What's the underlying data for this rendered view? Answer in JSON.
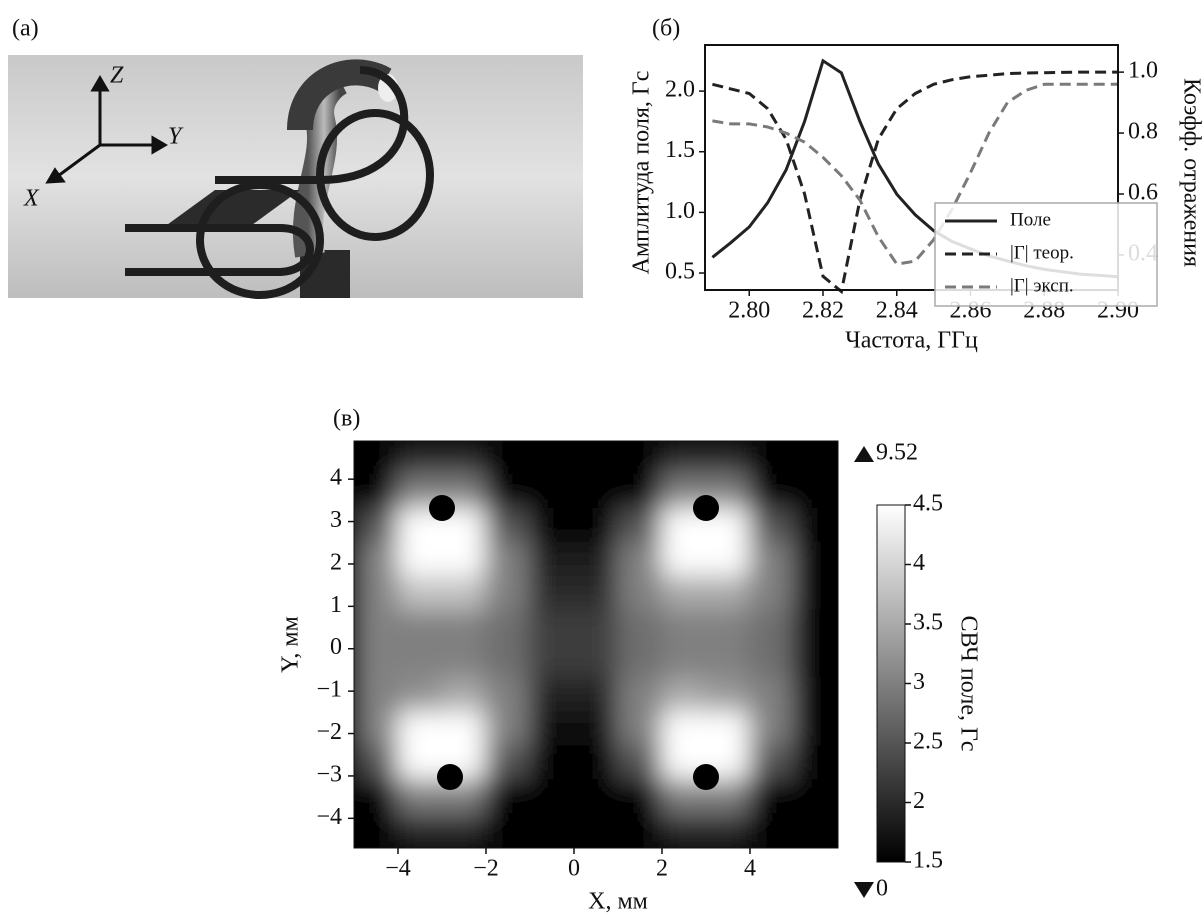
{
  "panel_labels": [
    "(а)",
    "(б)",
    "(в)"
  ],
  "illustration": {
    "axis_labels": [
      "Z",
      "Y",
      "X"
    ]
  },
  "chart_data": [
    {
      "type": "line",
      "xlabel": "Частота, ГГц",
      "ylabel": "Амплитуда поля, Гс",
      "y2label": "Коэфф. отражения",
      "x": [
        2.79,
        2.795,
        2.8,
        2.805,
        2.81,
        2.815,
        2.82,
        2.825,
        2.83,
        2.835,
        2.84,
        2.845,
        2.85,
        2.855,
        2.86,
        2.865,
        2.87,
        2.875,
        2.88,
        2.885,
        2.89,
        2.895,
        2.9
      ],
      "series": [
        {
          "name": "Поле",
          "color": "#222222",
          "style": "solid",
          "values": [
            0.63,
            0.75,
            0.88,
            1.08,
            1.35,
            1.75,
            2.25,
            2.15,
            1.75,
            1.4,
            1.15,
            0.98,
            0.85,
            0.76,
            0.7,
            0.64,
            0.6,
            0.56,
            0.53,
            0.51,
            0.49,
            0.48,
            0.47
          ]
        },
        {
          "name": "|Г| теор.",
          "color": "#222222",
          "style": "dashed",
          "axis": "y2",
          "values": [
            0.96,
            0.945,
            0.93,
            0.88,
            0.78,
            0.6,
            0.33,
            0.28,
            0.58,
            0.78,
            0.88,
            0.93,
            0.96,
            0.975,
            0.985,
            0.99,
            0.995,
            0.997,
            0.998,
            0.999,
            1.0,
            1.0,
            1.0
          ]
        },
        {
          "name": "|Г| эксп.",
          "color": "#7a7a7a",
          "style": "dashed",
          "axis": "y2",
          "values": [
            0.84,
            0.83,
            0.83,
            0.82,
            0.8,
            0.77,
            0.72,
            0.66,
            0.58,
            0.46,
            0.37,
            0.38,
            0.45,
            0.55,
            0.67,
            0.8,
            0.9,
            0.94,
            0.96,
            0.96,
            0.96,
            0.96,
            0.96
          ]
        }
      ],
      "xlim": [
        2.788,
        2.9
      ],
      "xticks": [
        {
          "value": 2.8,
          "label": "2.80"
        },
        {
          "value": 2.82,
          "label": "2.82"
        },
        {
          "value": 2.84,
          "label": "2.84"
        },
        {
          "value": 2.86,
          "label": "2.86"
        },
        {
          "value": 2.88,
          "label": "2.88"
        },
        {
          "value": 2.9,
          "label": "2.90"
        }
      ],
      "ylim": [
        0.36,
        2.38
      ],
      "yticks": [
        0.5,
        {
          "value": 1,
          "label": "1.0"
        },
        1.5,
        {
          "value": 2,
          "label": "2.0"
        }
      ],
      "y2lim": [
        0.285,
        1.089
      ],
      "y2ticks": [
        0.4,
        0.6,
        0.8,
        {
          "value": 1,
          "label": "1.0"
        }
      ],
      "legend": "lower right"
    },
    {
      "type": "heatmap",
      "xlabel": "X, мм",
      "ylabel": "Y, мм",
      "colorbar_label": "СВЧ поле, Гс",
      "x": [
        -4.5,
        -3.5,
        -2.5,
        -1.5,
        -0.5,
        0.5,
        1.5,
        2.5,
        3.5,
        4.5,
        5.5
      ],
      "y": [
        4.5,
        3.7,
        2.9,
        2.1,
        1.3,
        0.5,
        -0.3,
        -1.1,
        -1.9,
        -2.7,
        -3.5,
        -4.3
      ],
      "z": [
        [
          1.5,
          2,
          2,
          1.5,
          1.5,
          1.5,
          1.5,
          2,
          2,
          1.5,
          1.5
        ],
        [
          1.5,
          3,
          3,
          1.5,
          1.5,
          1.5,
          1.5,
          3,
          3,
          1.5,
          1.5
        ],
        [
          2.5,
          4.5,
          4.5,
          2.5,
          1.5,
          1.5,
          2.5,
          4.5,
          4.5,
          2.5,
          1.5
        ],
        [
          3,
          4.5,
          4.5,
          3,
          1.8,
          1.8,
          3,
          4.5,
          4.5,
          3,
          1.5
        ],
        [
          3,
          3.8,
          3.8,
          3,
          2,
          2,
          3,
          3.5,
          3.5,
          3,
          1.5
        ],
        [
          3,
          3,
          3,
          2.8,
          2.2,
          2.2,
          2.8,
          3,
          3,
          2.8,
          1.5
        ],
        [
          3,
          3,
          3,
          2.8,
          2.2,
          2.2,
          2.8,
          3,
          3,
          2.8,
          1.5
        ],
        [
          3,
          3.2,
          3.5,
          3,
          1.9,
          1.9,
          3,
          3.5,
          3.3,
          3,
          1.5
        ],
        [
          3,
          4.5,
          4.5,
          3,
          1.7,
          1.7,
          3,
          4.5,
          4.5,
          3,
          1.5
        ],
        [
          2.5,
          4.5,
          4.5,
          2.5,
          1.5,
          1.5,
          2.5,
          4.5,
          4.5,
          2.5,
          1.5
        ],
        [
          1.5,
          3,
          3,
          1.5,
          1.5,
          1.5,
          1.5,
          3,
          3,
          1.5,
          1.5
        ],
        [
          1.5,
          2,
          2,
          1.5,
          1.5,
          1.5,
          1.5,
          2,
          2,
          1.5,
          1.5
        ]
      ],
      "xlim": [
        -5,
        6
      ],
      "xticks": [
        {
          "value": -4,
          "label": "−4"
        },
        {
          "value": -2,
          "label": "−2"
        },
        0,
        2,
        4
      ],
      "ylim": [
        -4.7,
        4.9
      ],
      "yticks": [
        {
          "value": -4,
          "label": "−4"
        },
        {
          "value": -3,
          "label": "−3"
        },
        {
          "value": -2,
          "label": "−2"
        },
        {
          "value": -1,
          "label": "−1"
        },
        0,
        1,
        2,
        3,
        4
      ],
      "clim": [
        1.5,
        4.5
      ],
      "cticks": [
        1.5,
        2,
        2.5,
        3,
        3.5,
        4,
        4.5
      ],
      "vmax": 9.52,
      "vmin": 0
    }
  ]
}
